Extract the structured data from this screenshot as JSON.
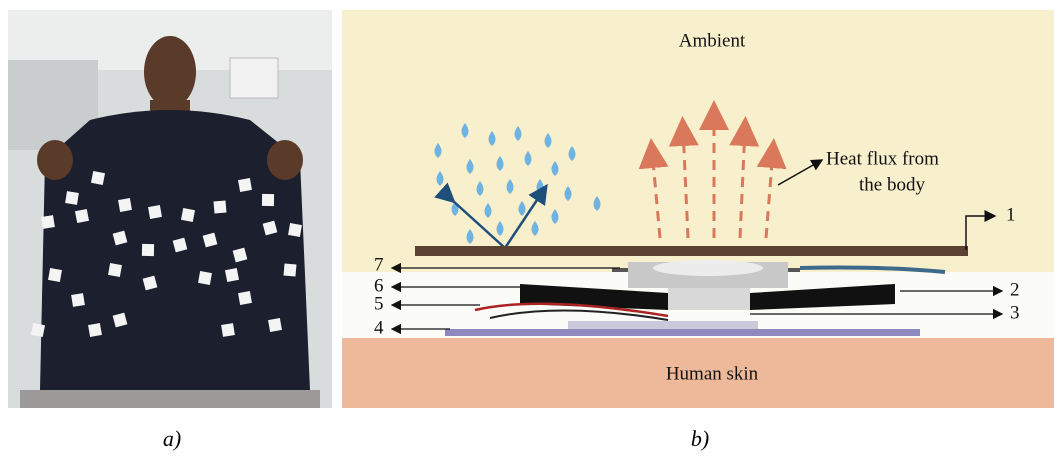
{
  "panel_a": {
    "caption": "a)"
  },
  "panel_b": {
    "caption": "b)",
    "ambient": "Ambient",
    "heat_flux": [
      "Heat flux from",
      "the body"
    ],
    "layers": [
      "1",
      "2",
      "3",
      "4",
      "5",
      "6",
      "7"
    ],
    "skin": "Human skin"
  }
}
